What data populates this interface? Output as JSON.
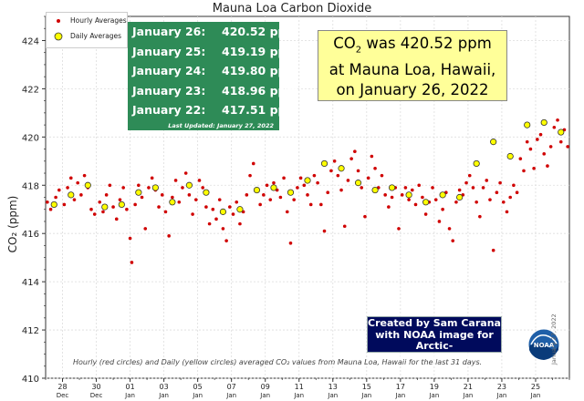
{
  "chart_data": {
    "type": "scatter",
    "title": "Mauna Loa Carbon Dioxide",
    "xlabel": "",
    "ylabel": "CO₂ (ppm)",
    "ylim": [
      410,
      425
    ],
    "yticks": [
      410,
      412,
      414,
      416,
      418,
      420,
      422,
      424
    ],
    "xlim": [
      27,
      58
    ],
    "xticks": [
      {
        "x": 28,
        "day": "28",
        "month": "Dec"
      },
      {
        "x": 30,
        "day": "30",
        "month": "Dec"
      },
      {
        "x": 32,
        "day": "01",
        "month": "Jan"
      },
      {
        "x": 34,
        "day": "03",
        "month": "Jan"
      },
      {
        "x": 36,
        "day": "05",
        "month": "Jan"
      },
      {
        "x": 38,
        "day": "07",
        "month": "Jan"
      },
      {
        "x": 40,
        "day": "09",
        "month": "Jan"
      },
      {
        "x": 42,
        "day": "11",
        "month": "Jan"
      },
      {
        "x": 44,
        "day": "13",
        "month": "Jan"
      },
      {
        "x": 46,
        "day": "15",
        "month": "Jan"
      },
      {
        "x": 48,
        "day": "17",
        "month": "Jan"
      },
      {
        "x": 50,
        "day": "19",
        "month": "Jan"
      },
      {
        "x": 52,
        "day": "21",
        "month": "Jan"
      },
      {
        "x": 54,
        "day": "23",
        "month": "Jan"
      },
      {
        "x": 56,
        "day": "25",
        "month": "Jan"
      }
    ],
    "series": [
      {
        "name": "Daily Averages",
        "color": "#ffff00",
        "x": [
          27.5,
          28.5,
          29.5,
          30.5,
          31.5,
          32.5,
          33.5,
          34.5,
          35.5,
          36.5,
          37.5,
          38.5,
          39.5,
          40.5,
          41.5,
          42.5,
          43.5,
          44.5,
          45.5,
          46.5,
          47.5,
          48.5,
          49.5,
          50.5,
          51.5,
          52.5,
          53.5,
          54.5,
          55.5,
          56.5,
          57.5
        ],
        "values": [
          417.2,
          417.6,
          418.0,
          417.1,
          417.2,
          417.7,
          417.9,
          417.3,
          418.0,
          417.7,
          416.9,
          417.0,
          417.8,
          417.9,
          417.7,
          418.2,
          418.9,
          418.7,
          418.1,
          417.8,
          417.9,
          417.6,
          417.3,
          417.6,
          417.5,
          418.9,
          419.8,
          419.2,
          420.5,
          420.6,
          420.2
        ]
      },
      {
        "name": "Hourly Averages",
        "color": "#d00000",
        "x": [
          27.1,
          27.3,
          27.6,
          27.8,
          28.1,
          28.3,
          28.5,
          28.7,
          28.9,
          29.1,
          29.3,
          29.5,
          29.7,
          29.9,
          30.2,
          30.4,
          30.6,
          30.8,
          31.0,
          31.2,
          31.4,
          31.6,
          31.8,
          32.0,
          32.1,
          32.3,
          32.5,
          32.7,
          32.9,
          33.1,
          33.3,
          33.5,
          33.7,
          33.9,
          34.1,
          34.3,
          34.5,
          34.7,
          34.9,
          35.1,
          35.3,
          35.5,
          35.7,
          35.9,
          36.1,
          36.3,
          36.5,
          36.7,
          36.9,
          37.1,
          37.3,
          37.5,
          37.7,
          37.9,
          38.1,
          38.3,
          38.5,
          38.7,
          38.9,
          39.1,
          39.3,
          39.5,
          39.7,
          39.9,
          40.1,
          40.3,
          40.5,
          40.7,
          40.9,
          41.1,
          41.3,
          41.5,
          41.7,
          41.9,
          42.1,
          42.3,
          42.5,
          42.7,
          42.9,
          43.1,
          43.3,
          43.5,
          43.7,
          43.9,
          44.1,
          44.3,
          44.5,
          44.7,
          44.9,
          45.1,
          45.3,
          45.5,
          45.7,
          45.9,
          46.1,
          46.3,
          46.5,
          46.7,
          46.9,
          47.1,
          47.3,
          47.5,
          47.7,
          47.9,
          48.1,
          48.3,
          48.5,
          48.7,
          48.9,
          49.1,
          49.3,
          49.5,
          49.7,
          49.9,
          50.1,
          50.3,
          50.5,
          50.7,
          50.9,
          51.1,
          51.3,
          51.5,
          51.7,
          51.9,
          52.1,
          52.3,
          52.5,
          52.7,
          52.9,
          53.1,
          53.3,
          53.5,
          53.7,
          53.9,
          54.1,
          54.3,
          54.5,
          54.7,
          54.9,
          55.1,
          55.3,
          55.5,
          55.7,
          55.9,
          56.1,
          56.3,
          56.5,
          56.7,
          56.9,
          57.1,
          57.3,
          57.5,
          57.7,
          57.9
        ],
        "values": [
          417.3,
          417.0,
          417.5,
          417.8,
          417.2,
          417.9,
          418.3,
          417.4,
          418.1,
          417.6,
          418.4,
          417.9,
          417.0,
          416.8,
          417.3,
          416.9,
          417.6,
          418.0,
          417.1,
          416.6,
          417.4,
          417.9,
          417.0,
          415.8,
          414.8,
          417.2,
          418.0,
          417.5,
          416.2,
          417.9,
          418.3,
          417.8,
          417.1,
          417.6,
          416.9,
          415.9,
          417.5,
          418.2,
          417.3,
          417.9,
          418.5,
          417.6,
          416.8,
          417.4,
          418.2,
          417.9,
          417.1,
          416.4,
          417.0,
          416.6,
          417.4,
          416.2,
          415.7,
          417.1,
          416.8,
          417.3,
          416.4,
          416.9,
          417.6,
          418.4,
          418.9,
          417.8,
          417.2,
          417.6,
          418.0,
          417.4,
          418.1,
          417.8,
          417.5,
          418.3,
          416.9,
          415.6,
          417.4,
          417.9,
          418.3,
          418.0,
          417.6,
          417.2,
          418.4,
          418.1,
          417.2,
          416.1,
          417.7,
          418.6,
          419.0,
          418.4,
          417.8,
          416.3,
          418.2,
          419.1,
          419.4,
          418.6,
          417.9,
          416.7,
          418.3,
          419.2,
          418.7,
          417.9,
          418.4,
          417.6,
          417.1,
          417.5,
          417.9,
          416.2,
          417.6,
          417.9,
          417.4,
          417.8,
          417.2,
          418.0,
          417.5,
          416.8,
          417.3,
          417.9,
          417.4,
          416.5,
          417.0,
          417.7,
          416.2,
          415.7,
          417.3,
          417.8,
          417.6,
          418.1,
          418.4,
          417.9,
          417.3,
          416.7,
          417.9,
          418.2,
          417.4,
          415.3,
          417.7,
          418.1,
          417.3,
          416.9,
          417.5,
          418.0,
          417.7,
          419.1,
          418.6,
          419.8,
          419.5,
          418.7,
          419.9,
          420.1,
          419.3,
          418.8,
          419.6,
          420.4,
          420.7,
          419.8,
          420.3,
          419.6
        ]
      }
    ]
  },
  "latest": {
    "rows": [
      {
        "date": "January 26:",
        "value": "420.52 ppm"
      },
      {
        "date": "January 25:",
        "value": "419.19 ppm"
      },
      {
        "date": "January 24:",
        "value": "419.80 ppm"
      },
      {
        "date": "January 23:",
        "value": "418.96 ppm"
      },
      {
        "date": "January 22:",
        "value": "417.51 ppm"
      }
    ],
    "updated": "Last Updated: January 27, 2022"
  },
  "callout": {
    "line1_a": "CO",
    "line1_sub": "2",
    "line1_b": " was 420.52 ppm",
    "line2": "at Mauna Loa, Hawaii,",
    "line3": "on January 26, 2022"
  },
  "credit": {
    "line1": "Created by Sam Carana",
    "line2": "with NOAA image for",
    "line3": "Arctic-news.blogspot.com"
  },
  "legend": {
    "hourly": "Hourly Averages",
    "daily": "Daily Averages"
  },
  "footnote": "Hourly (red circles) and Daily (yellow circles) averaged CO₂ values from Mauna Loa, Hawaii for the last 31 days.",
  "vertical_date": "January 27, 2022",
  "logo_text": "NOAA",
  "colors": {
    "panel_green": "#2e8b57",
    "callout_yellow": "#ffff99",
    "credit_navy": "#000a5c",
    "hourly_red": "#d00000",
    "daily_yellow": "#ffff00"
  }
}
